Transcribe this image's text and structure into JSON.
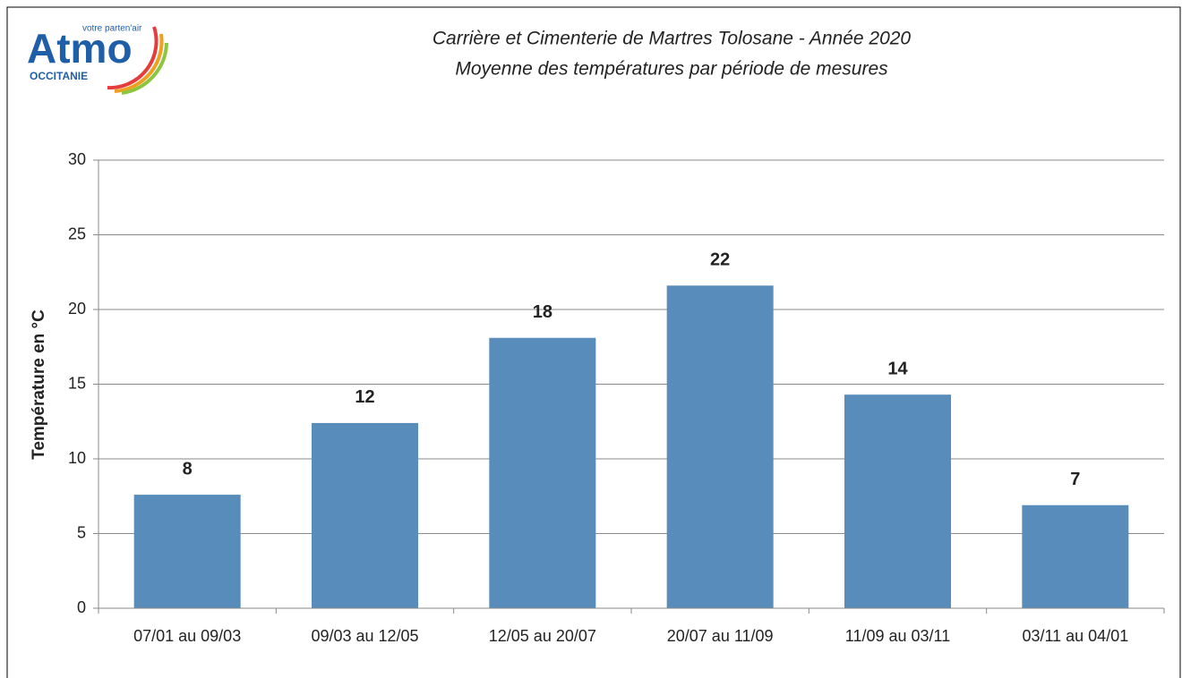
{
  "logo": {
    "name": "Atmo",
    "tagline": "votre parten'air",
    "region": "OCCITANIE"
  },
  "chart_data": {
    "type": "bar",
    "title": "Carrière et Cimenterie de Martres Tolosane - Année 2020",
    "subtitle": "Moyenne des températures par période de mesures",
    "y_label": "Température en °C",
    "categories": [
      "07/01 au 09/03",
      "09/03 au 12/05",
      "12/05 au 20/07",
      "20/07 au 11/09",
      "11/09 au 03/11",
      "03/11 au 04/01"
    ],
    "values": [
      7.6,
      12.4,
      18.1,
      21.6,
      14.3,
      6.9
    ],
    "value_labels": [
      "8",
      "12",
      "18",
      "22",
      "14",
      "7"
    ],
    "color": "#588dbb",
    "ylim": [
      0,
      30
    ],
    "yticks": [
      0,
      5,
      10,
      15,
      20,
      25,
      30
    ],
    "grid": true
  }
}
